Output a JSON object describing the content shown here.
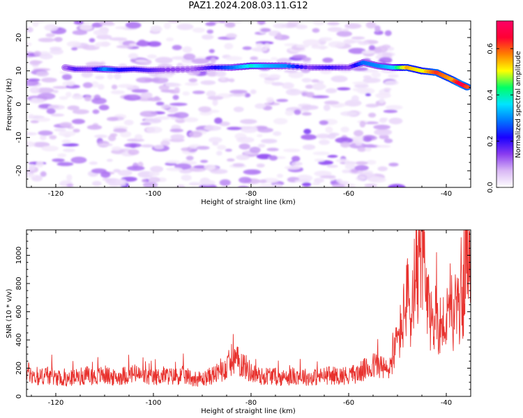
{
  "title": "PAZ1.2024.208.03.11.G12",
  "colors": {
    "snr_line": "#e8322e",
    "colormap": [
      "#ffffff",
      "#d9b8f5",
      "#8a3cf0",
      "#1a00ff",
      "#0077ff",
      "#00e5ff",
      "#00ff66",
      "#ffff00",
      "#ff8000",
      "#ff0033",
      "#ff0066"
    ]
  },
  "chart_data": [
    {
      "type": "heatmap",
      "title": "PAZ1.2024.208.03.11.G12",
      "xlabel": "Height of straight line (km)",
      "ylabel": "Frequency (Hz)",
      "xlim": [
        -126,
        -35
      ],
      "ylim": [
        -25,
        25
      ],
      "xticks": [
        -120,
        -100,
        -80,
        -60,
        -40
      ],
      "yticks": [
        -20,
        -10,
        0,
        10,
        20
      ],
      "colorbar": {
        "label": "Normalized spectral amplitude",
        "range": [
          0,
          0.72
        ],
        "ticks": [
          "0.0",
          "0.2",
          "0.4",
          "0.6"
        ],
        "tick_values": [
          0,
          0.2,
          0.4,
          0.6
        ]
      },
      "background_noise_region_x": [
        -126,
        -50
      ],
      "ridge": [
        {
          "x": -118,
          "y": 11,
          "amp": 0.12
        },
        {
          "x": -116,
          "y": 10.5,
          "amp": 0.18
        },
        {
          "x": -113,
          "y": 10.5,
          "amp": 0.15
        },
        {
          "x": -110,
          "y": 10.5,
          "amp": 0.3
        },
        {
          "x": -107,
          "y": 10.3,
          "amp": 0.22
        },
        {
          "x": -104,
          "y": 10.5,
          "amp": 0.2
        },
        {
          "x": -101,
          "y": 10.2,
          "amp": 0.18
        },
        {
          "x": -98,
          "y": 10.3,
          "amp": 0.15
        },
        {
          "x": -92,
          "y": 10.5,
          "amp": 0.12
        },
        {
          "x": -88,
          "y": 11,
          "amp": 0.2
        },
        {
          "x": -84,
          "y": 11,
          "amp": 0.28
        },
        {
          "x": -80,
          "y": 11.5,
          "amp": 0.38
        },
        {
          "x": -77,
          "y": 11.5,
          "amp": 0.33
        },
        {
          "x": -73,
          "y": 11.5,
          "amp": 0.3
        },
        {
          "x": -68,
          "y": 11,
          "amp": 0.15
        },
        {
          "x": -64,
          "y": 11,
          "amp": 0.2
        },
        {
          "x": -60,
          "y": 11,
          "amp": 0.15
        },
        {
          "x": -57,
          "y": 12.5,
          "amp": 0.28
        },
        {
          "x": -54,
          "y": 11.5,
          "amp": 0.3
        },
        {
          "x": -51,
          "y": 11,
          "amp": 0.35
        },
        {
          "x": -48,
          "y": 11,
          "amp": 0.55
        },
        {
          "x": -45,
          "y": 10,
          "amp": 0.5
        },
        {
          "x": -42,
          "y": 9.5,
          "amp": 0.62
        },
        {
          "x": -39,
          "y": 7.5,
          "amp": 0.55
        },
        {
          "x": -37,
          "y": 6,
          "amp": 0.68
        },
        {
          "x": -35.5,
          "y": 5,
          "amp": 0.6
        }
      ]
    },
    {
      "type": "line",
      "xlabel": "Height of straight line (km)",
      "ylabel": "SNR (10 * v/v)",
      "xlim": [
        -126,
        -35
      ],
      "ylim": [
        0,
        1180
      ],
      "xticks": [
        -120,
        -100,
        -80,
        -60,
        -40
      ],
      "yticks": [
        0,
        200,
        400,
        600,
        800,
        1000
      ],
      "series": [
        {
          "x": [
            -126,
            -124,
            -122,
            -120,
            -118,
            -116,
            -114,
            -112,
            -110,
            -108,
            -106,
            -104,
            -102,
            -100,
            -98,
            -96,
            -94,
            -92,
            -90,
            -88,
            -86,
            -84,
            -82,
            -80,
            -78,
            -76,
            -74,
            -72,
            -70,
            -68,
            -66,
            -64,
            -62,
            -60,
            -58,
            -56,
            -54,
            -52,
            -50,
            -49,
            -48,
            -47,
            -46,
            -45.5,
            -45,
            -44.5,
            -44,
            -43,
            -42,
            -41,
            -40,
            -39,
            -38,
            -37,
            -36.5,
            -36,
            -35.5,
            -35
          ],
          "values": [
            180,
            130,
            150,
            140,
            120,
            135,
            150,
            140,
            155,
            130,
            150,
            160,
            140,
            130,
            150,
            140,
            150,
            130,
            120,
            150,
            170,
            260,
            240,
            170,
            140,
            150,
            130,
            140,
            150,
            130,
            140,
            150,
            145,
            150,
            165,
            200,
            230,
            175,
            380,
            520,
            700,
            550,
            700,
            950,
            1150,
            870,
            640,
            520,
            560,
            500,
            520,
            560,
            610,
            650,
            720,
            1180,
            850,
            820
          ]
        }
      ]
    }
  ]
}
